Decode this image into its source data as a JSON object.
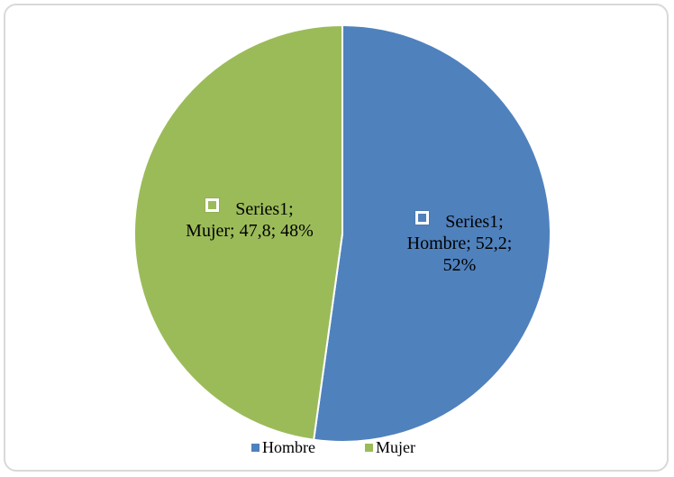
{
  "chart_data": {
    "type": "pie",
    "categories": [
      "Hombre",
      "Mujer"
    ],
    "series": [
      {
        "name": "Series1",
        "values": [
          52.2,
          47.8
        ],
        "colors": [
          "#4f81bd",
          "#9bbb59"
        ]
      }
    ],
    "value_labels": [
      "Series1; Hombre; 52,2; 52%",
      "Series1; Mujer; 47,8; 48%"
    ],
    "legend": "bottom"
  }
}
